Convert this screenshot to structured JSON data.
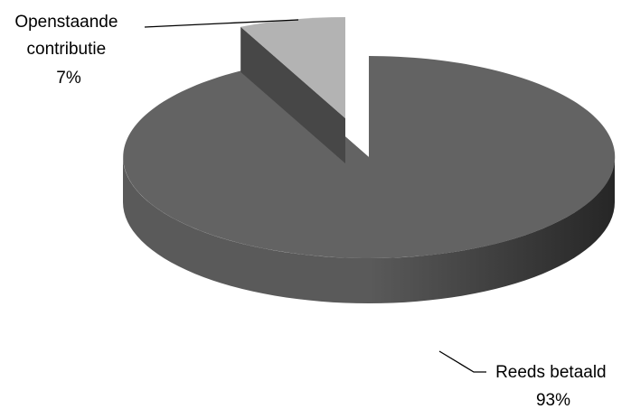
{
  "chart_data": {
    "type": "pie",
    "title": "",
    "legend": "none",
    "slices": [
      {
        "label_lines": [
          "Reeds betaald"
        ],
        "percent_label": "93%",
        "value": 93,
        "exploded": false
      },
      {
        "label_lines": [
          "Openstaande",
          "contributie"
        ],
        "percent_label": "7%",
        "value": 7,
        "exploded": true
      }
    ]
  },
  "colors": {
    "main_top": "#636363",
    "main_side_light": "#5a5a5a",
    "main_side_dark": "#262626",
    "main_cut_face": "#4f4f4f",
    "minor_top": "#b3b3b3",
    "minor_side": "#474747",
    "minor_cut": "#8c8c8c",
    "leader_line": "#000000"
  }
}
